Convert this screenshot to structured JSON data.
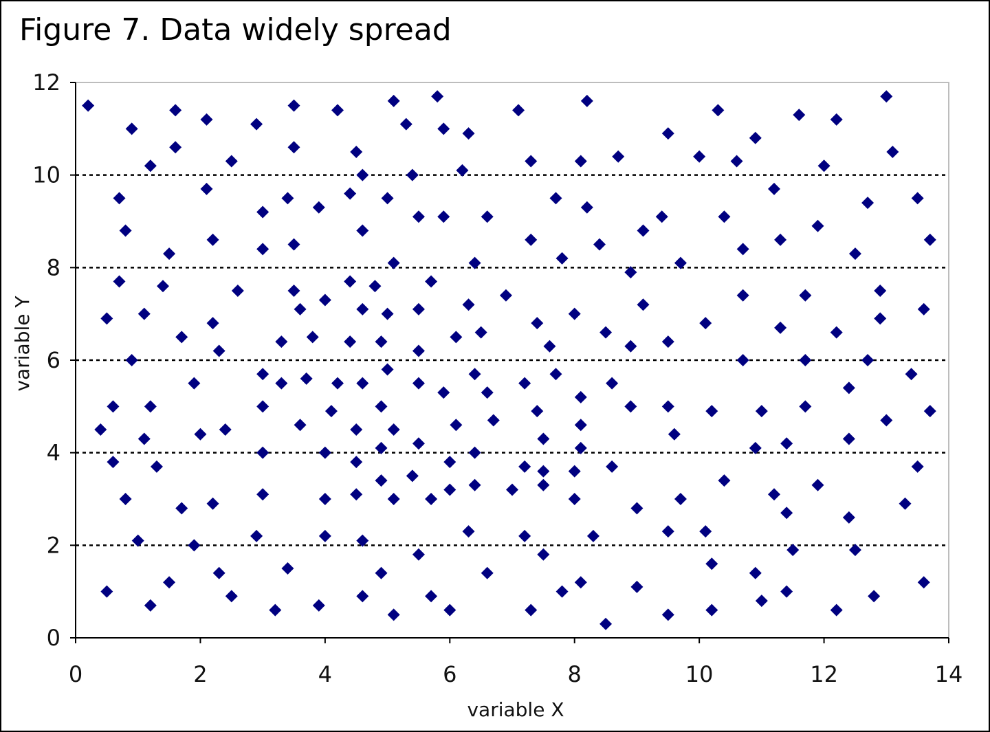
{
  "chart_data": {
    "type": "scatter",
    "title": "Figure 7. Data widely spread",
    "xlabel": "variable X",
    "ylabel": "variable Y",
    "xlim": [
      0,
      14
    ],
    "ylim": [
      0,
      12
    ],
    "xticks": [
      "0",
      "2",
      "4",
      "6",
      "8",
      "10",
      "12",
      "14"
    ],
    "yticks": [
      "0",
      "2",
      "4",
      "6",
      "8",
      "10",
      "12"
    ],
    "grid": "horizontal dotted",
    "legend": "none",
    "marker": "diamond",
    "marker_color": "#000080",
    "points": [
      [
        0.2,
        11.5
      ],
      [
        0.4,
        4.5
      ],
      [
        0.5,
        6.9
      ],
      [
        0.5,
        1.0
      ],
      [
        0.6,
        5.0
      ],
      [
        0.6,
        3.8
      ],
      [
        0.7,
        9.5
      ],
      [
        0.7,
        7.7
      ],
      [
        0.8,
        8.8
      ],
      [
        0.8,
        3.0
      ],
      [
        0.9,
        11.0
      ],
      [
        0.9,
        6.0
      ],
      [
        1.0,
        2.1
      ],
      [
        1.1,
        7.0
      ],
      [
        1.1,
        4.3
      ],
      [
        1.2,
        10.2
      ],
      [
        1.2,
        5.0
      ],
      [
        1.2,
        0.7
      ],
      [
        1.3,
        3.7
      ],
      [
        1.4,
        7.6
      ],
      [
        1.5,
        8.3
      ],
      [
        1.5,
        1.2
      ],
      [
        1.6,
        11.4
      ],
      [
        1.6,
        10.6
      ],
      [
        1.7,
        6.5
      ],
      [
        1.7,
        2.8
      ],
      [
        1.9,
        5.5
      ],
      [
        1.9,
        2.0
      ],
      [
        2.0,
        4.4
      ],
      [
        2.1,
        11.2
      ],
      [
        2.1,
        9.7
      ],
      [
        2.2,
        8.6
      ],
      [
        2.2,
        6.8
      ],
      [
        2.2,
        2.9
      ],
      [
        2.3,
        6.2
      ],
      [
        2.3,
        1.4
      ],
      [
        2.4,
        4.5
      ],
      [
        2.5,
        10.3
      ],
      [
        2.5,
        0.9
      ],
      [
        2.6,
        7.5
      ],
      [
        2.9,
        11.1
      ],
      [
        2.9,
        2.2
      ],
      [
        3.0,
        9.2
      ],
      [
        3.0,
        5.7
      ],
      [
        3.0,
        5.0
      ],
      [
        3.0,
        4.0
      ],
      [
        3.0,
        3.1
      ],
      [
        3.0,
        8.4
      ],
      [
        3.2,
        0.6
      ],
      [
        3.3,
        6.4
      ],
      [
        3.3,
        5.5
      ],
      [
        3.4,
        9.5
      ],
      [
        3.4,
        1.5
      ],
      [
        3.5,
        11.5
      ],
      [
        3.5,
        10.6
      ],
      [
        3.5,
        8.5
      ],
      [
        3.5,
        7.5
      ],
      [
        3.6,
        7.1
      ],
      [
        3.6,
        4.6
      ],
      [
        3.7,
        5.6
      ],
      [
        3.8,
        6.5
      ],
      [
        3.9,
        9.3
      ],
      [
        3.9,
        0.7
      ],
      [
        4.0,
        7.3
      ],
      [
        4.0,
        4.0
      ],
      [
        4.0,
        3.0
      ],
      [
        4.0,
        2.2
      ],
      [
        4.1,
        4.9
      ],
      [
        4.2,
        11.4
      ],
      [
        4.2,
        5.5
      ],
      [
        4.4,
        9.6
      ],
      [
        4.4,
        7.7
      ],
      [
        4.4,
        6.4
      ],
      [
        4.5,
        10.5
      ],
      [
        4.5,
        4.5
      ],
      [
        4.5,
        3.8
      ],
      [
        4.5,
        3.1
      ],
      [
        4.6,
        10.0
      ],
      [
        4.6,
        8.8
      ],
      [
        4.6,
        7.1
      ],
      [
        4.6,
        5.5
      ],
      [
        4.6,
        2.1
      ],
      [
        4.6,
        0.9
      ],
      [
        4.8,
        7.6
      ],
      [
        4.9,
        6.4
      ],
      [
        4.9,
        5.0
      ],
      [
        4.9,
        4.1
      ],
      [
        4.9,
        3.4
      ],
      [
        4.9,
        1.4
      ],
      [
        5.0,
        9.5
      ],
      [
        5.0,
        7.0
      ],
      [
        5.0,
        5.8
      ],
      [
        5.1,
        11.6
      ],
      [
        5.1,
        8.1
      ],
      [
        5.1,
        4.5
      ],
      [
        5.1,
        3.0
      ],
      [
        5.1,
        0.5
      ],
      [
        5.3,
        11.1
      ],
      [
        5.4,
        10.0
      ],
      [
        5.4,
        3.5
      ],
      [
        5.5,
        9.1
      ],
      [
        5.5,
        7.1
      ],
      [
        5.5,
        6.2
      ],
      [
        5.5,
        5.5
      ],
      [
        5.5,
        4.2
      ],
      [
        5.5,
        1.8
      ],
      [
        5.7,
        7.7
      ],
      [
        5.7,
        3.0
      ],
      [
        5.7,
        0.9
      ],
      [
        5.8,
        11.7
      ],
      [
        5.9,
        11.0
      ],
      [
        5.9,
        9.1
      ],
      [
        5.9,
        5.3
      ],
      [
        6.0,
        3.8
      ],
      [
        6.0,
        3.2
      ],
      [
        6.0,
        0.6
      ],
      [
        6.1,
        6.5
      ],
      [
        6.1,
        4.6
      ],
      [
        6.2,
        10.1
      ],
      [
        6.3,
        10.9
      ],
      [
        6.3,
        7.2
      ],
      [
        6.3,
        2.3
      ],
      [
        6.4,
        8.1
      ],
      [
        6.4,
        5.7
      ],
      [
        6.4,
        4.0
      ],
      [
        6.4,
        3.3
      ],
      [
        6.5,
        6.6
      ],
      [
        6.6,
        9.1
      ],
      [
        6.6,
        5.3
      ],
      [
        6.6,
        1.4
      ],
      [
        6.7,
        4.7
      ],
      [
        6.9,
        7.4
      ],
      [
        7.0,
        3.2
      ],
      [
        7.1,
        11.4
      ],
      [
        7.2,
        3.7
      ],
      [
        7.2,
        2.2
      ],
      [
        7.2,
        5.5
      ],
      [
        7.3,
        10.3
      ],
      [
        7.3,
        8.6
      ],
      [
        7.3,
        0.6
      ],
      [
        7.4,
        6.8
      ],
      [
        7.4,
        4.9
      ],
      [
        7.5,
        4.3
      ],
      [
        7.5,
        3.3
      ],
      [
        7.5,
        1.8
      ],
      [
        7.5,
        3.6
      ],
      [
        7.6,
        6.3
      ],
      [
        7.7,
        5.7
      ],
      [
        7.7,
        9.5
      ],
      [
        7.8,
        8.2
      ],
      [
        7.8,
        1.0
      ],
      [
        8.0,
        7.0
      ],
      [
        8.0,
        3.6
      ],
      [
        8.0,
        3.0
      ],
      [
        8.1,
        10.3
      ],
      [
        8.1,
        5.2
      ],
      [
        8.1,
        4.6
      ],
      [
        8.1,
        4.1
      ],
      [
        8.1,
        1.2
      ],
      [
        8.2,
        11.6
      ],
      [
        8.2,
        9.3
      ],
      [
        8.3,
        2.2
      ],
      [
        8.4,
        8.5
      ],
      [
        8.5,
        6.6
      ],
      [
        8.5,
        0.3
      ],
      [
        8.6,
        5.5
      ],
      [
        8.6,
        3.7
      ],
      [
        8.7,
        10.4
      ],
      [
        8.9,
        7.9
      ],
      [
        8.9,
        6.3
      ],
      [
        8.9,
        5.0
      ],
      [
        9.0,
        2.8
      ],
      [
        9.0,
        1.1
      ],
      [
        9.1,
        8.8
      ],
      [
        9.1,
        7.2
      ],
      [
        9.4,
        9.1
      ],
      [
        9.5,
        10.9
      ],
      [
        9.5,
        6.4
      ],
      [
        9.5,
        5.0
      ],
      [
        9.5,
        2.3
      ],
      [
        9.5,
        0.5
      ],
      [
        9.6,
        4.4
      ],
      [
        9.7,
        8.1
      ],
      [
        9.7,
        3.0
      ],
      [
        10.0,
        10.4
      ],
      [
        10.1,
        2.3
      ],
      [
        10.1,
        6.8
      ],
      [
        10.2,
        1.6
      ],
      [
        10.2,
        0.6
      ],
      [
        10.2,
        4.9
      ],
      [
        10.3,
        11.4
      ],
      [
        10.4,
        3.4
      ],
      [
        10.4,
        9.1
      ],
      [
        10.6,
        10.3
      ],
      [
        10.7,
        8.4
      ],
      [
        10.7,
        7.4
      ],
      [
        10.7,
        6.0
      ],
      [
        10.9,
        10.8
      ],
      [
        10.9,
        4.1
      ],
      [
        10.9,
        1.4
      ],
      [
        11.0,
        0.8
      ],
      [
        11.0,
        4.9
      ],
      [
        11.2,
        9.7
      ],
      [
        11.2,
        3.1
      ],
      [
        11.3,
        8.6
      ],
      [
        11.3,
        6.7
      ],
      [
        11.4,
        4.2
      ],
      [
        11.4,
        2.7
      ],
      [
        11.4,
        1.0
      ],
      [
        11.5,
        1.9
      ],
      [
        11.6,
        11.3
      ],
      [
        11.7,
        7.4
      ],
      [
        11.7,
        6.0
      ],
      [
        11.7,
        5.0
      ],
      [
        11.9,
        8.9
      ],
      [
        11.9,
        3.3
      ],
      [
        12.0,
        10.2
      ],
      [
        12.2,
        11.2
      ],
      [
        12.2,
        6.6
      ],
      [
        12.2,
        0.6
      ],
      [
        12.4,
        5.4
      ],
      [
        12.4,
        4.3
      ],
      [
        12.4,
        2.6
      ],
      [
        12.5,
        8.3
      ],
      [
        12.5,
        1.9
      ],
      [
        12.7,
        9.4
      ],
      [
        12.7,
        6.0
      ],
      [
        12.8,
        0.9
      ],
      [
        12.9,
        7.5
      ],
      [
        12.9,
        6.9
      ],
      [
        13.0,
        11.7
      ],
      [
        13.0,
        4.7
      ],
      [
        13.1,
        10.5
      ],
      [
        13.3,
        2.9
      ],
      [
        13.4,
        5.7
      ],
      [
        13.5,
        9.5
      ],
      [
        13.5,
        3.7
      ],
      [
        13.6,
        7.1
      ],
      [
        13.6,
        1.2
      ],
      [
        13.7,
        8.6
      ],
      [
        13.7,
        4.9
      ]
    ]
  }
}
